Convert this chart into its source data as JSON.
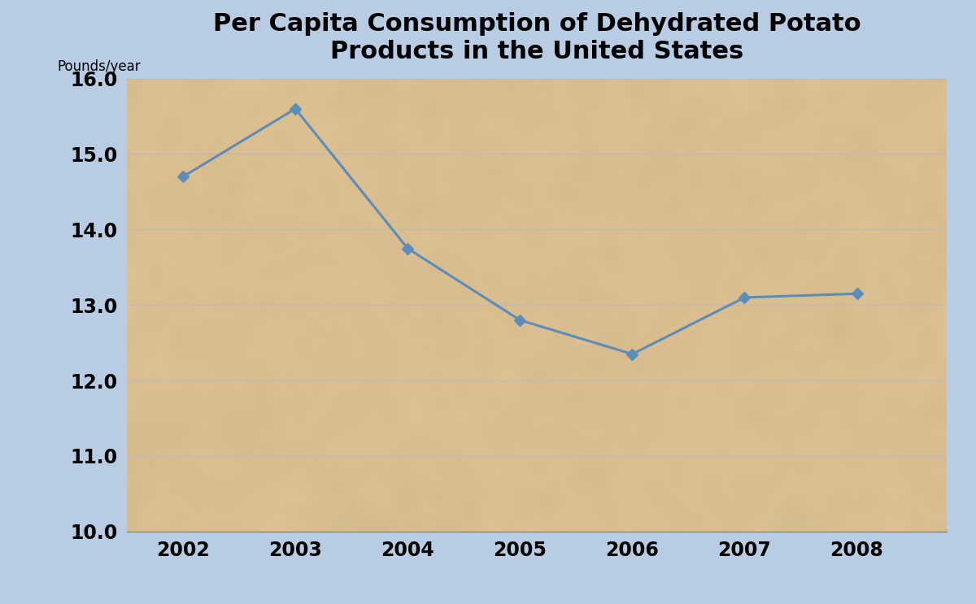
{
  "title": "Per Capita Consumption of Dehydrated Potato\nProducts in the United States",
  "ylabel": "Pounds/year",
  "years": [
    2002,
    2003,
    2004,
    2005,
    2006,
    2007,
    2008
  ],
  "values": [
    14.7,
    15.6,
    13.75,
    12.8,
    12.35,
    13.1,
    13.15
  ],
  "ylim": [
    10.0,
    16.0
  ],
  "yticks": [
    10.0,
    11.0,
    12.0,
    13.0,
    14.0,
    15.0,
    16.0
  ],
  "line_color": "#5b8db8",
  "marker": "D",
  "marker_size": 7,
  "line_width": 2.2,
  "bg_outer": "#b8cce4",
  "plot_bg": "#d4b483",
  "title_fontsize": 22,
  "tick_fontsize": 17,
  "ylabel_fontsize": 12,
  "grid_color": "#bbbbbb",
  "xlim_left": 2001.5,
  "xlim_right": 2008.8
}
